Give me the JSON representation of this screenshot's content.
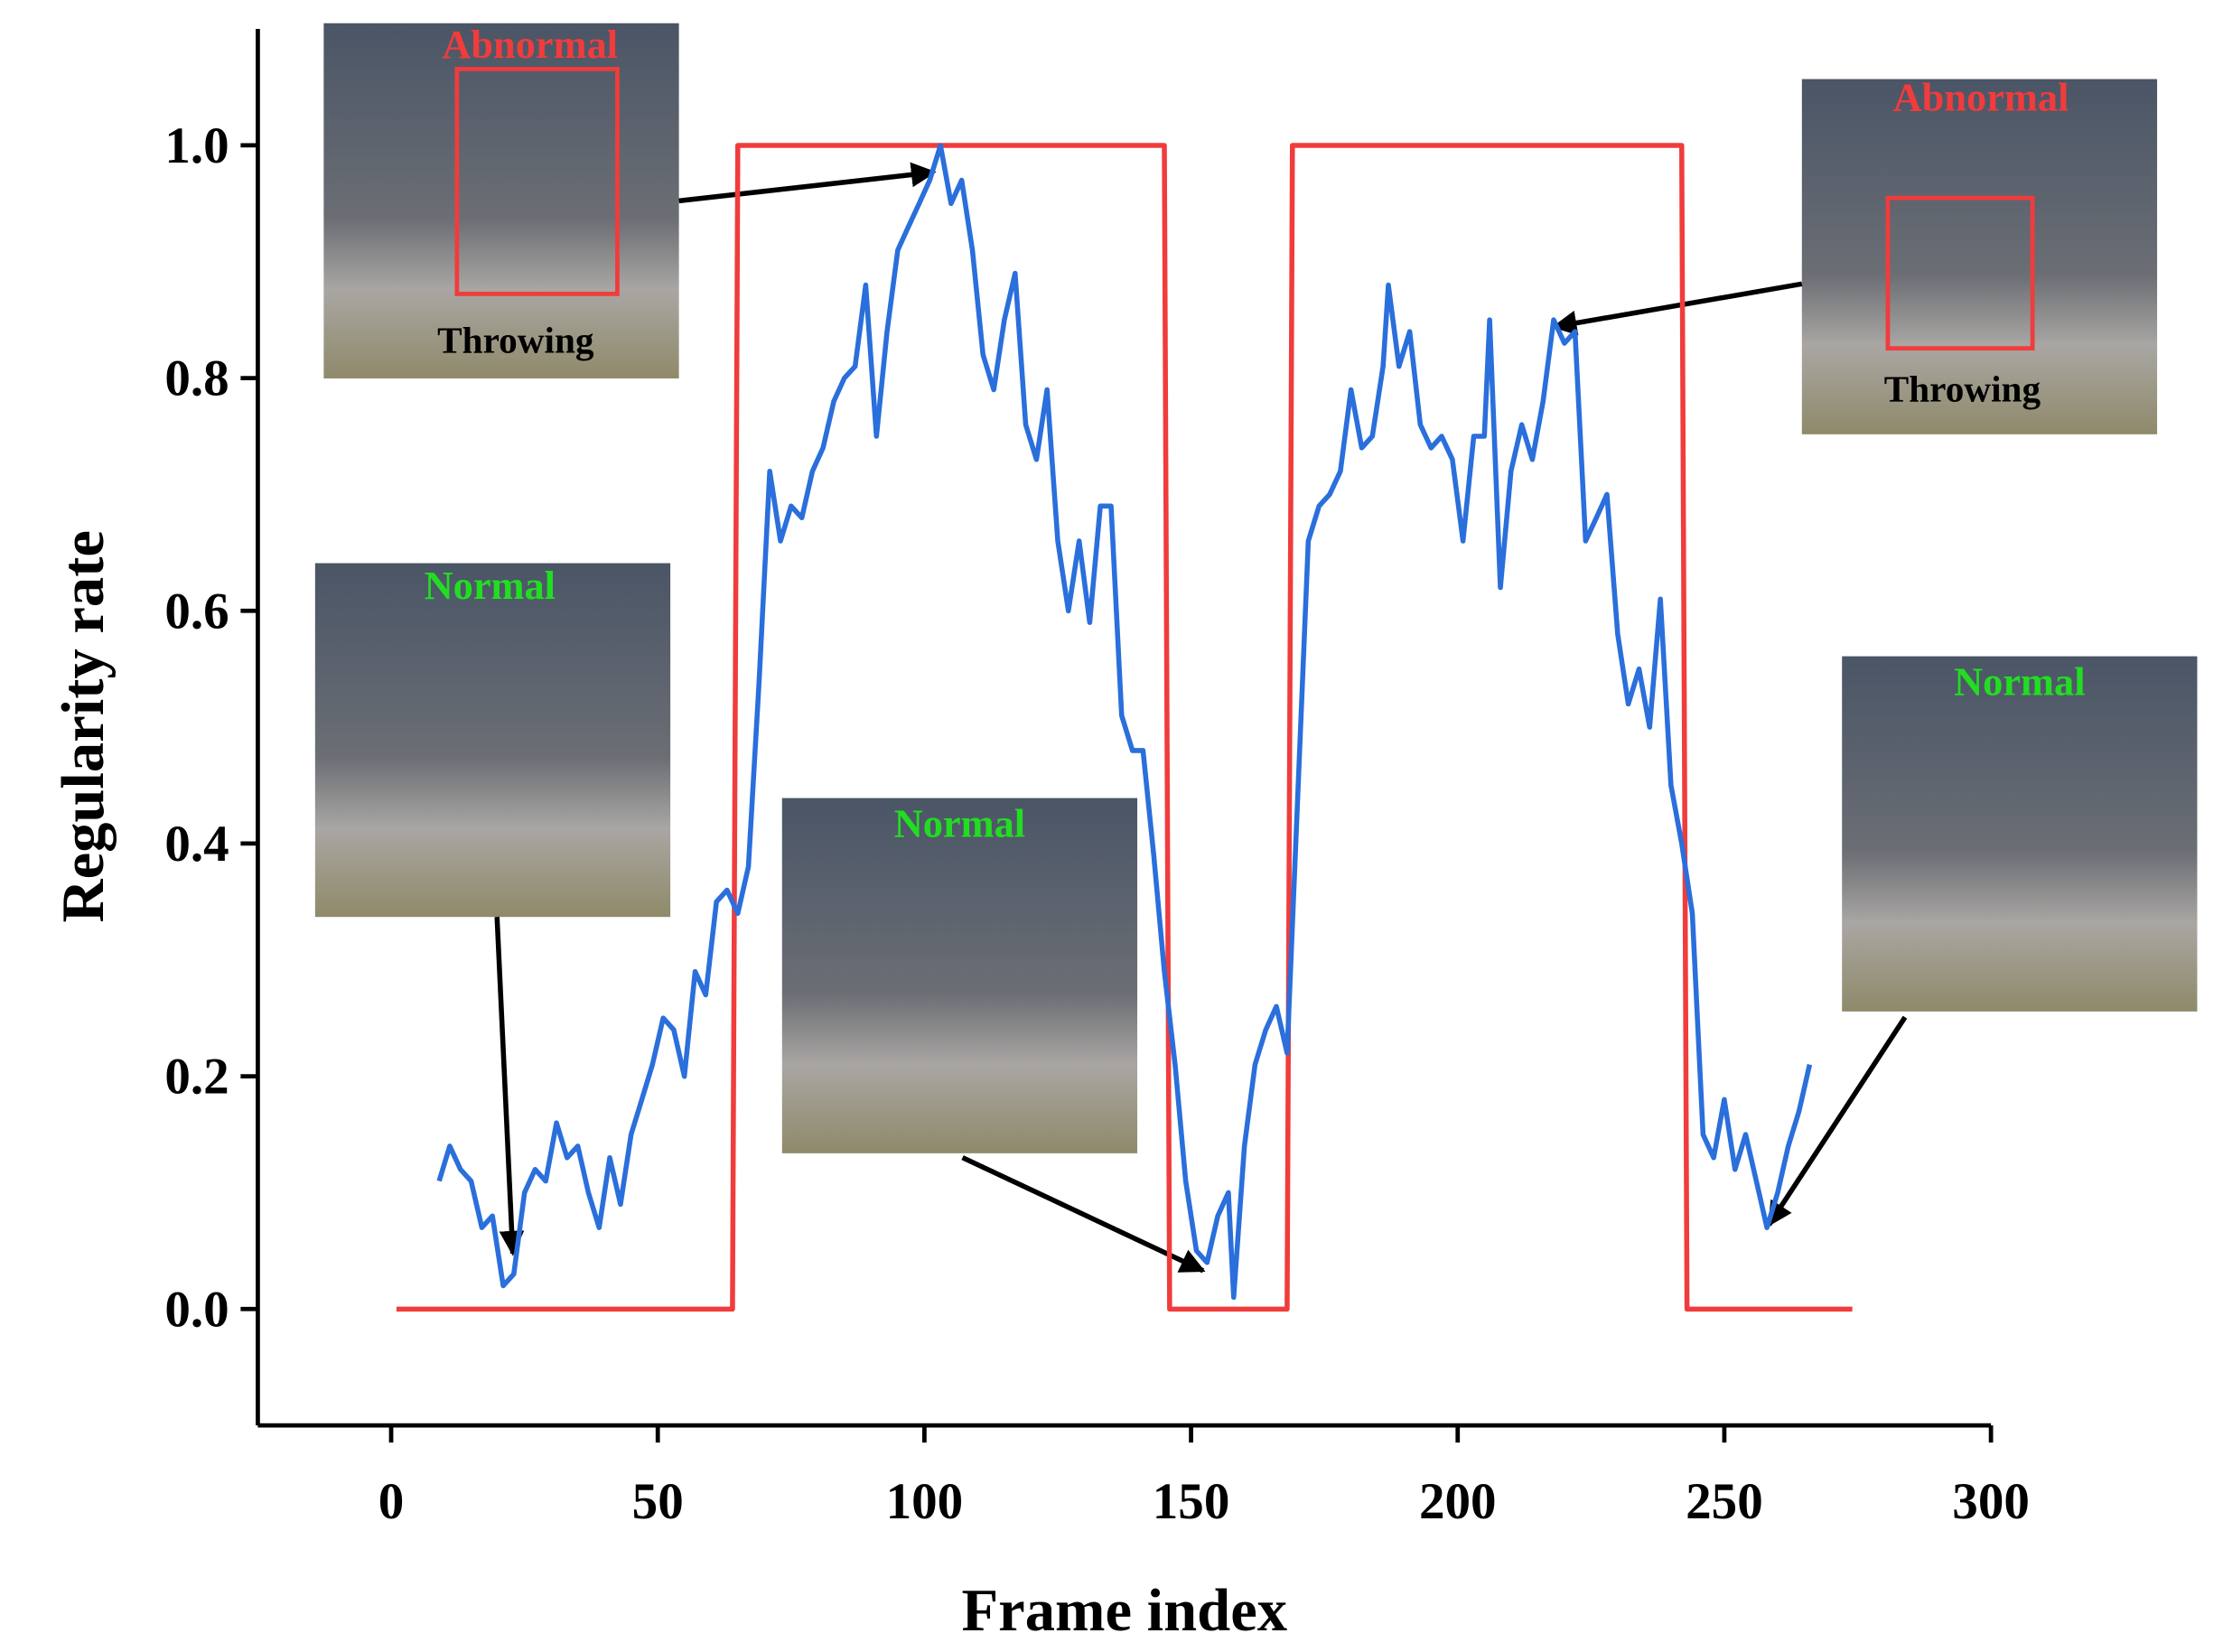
{
  "chart_data": {
    "type": "line",
    "xlabel": "Frame index",
    "ylabel": "Regularity rate",
    "xlim": [
      -25,
      300
    ],
    "ylim": [
      -0.1,
      1.1
    ],
    "xticks": [
      0,
      50,
      100,
      150,
      200,
      250,
      300
    ],
    "yticks": [
      {
        "value": 0,
        "label": "0.0"
      },
      0.2,
      0.4,
      0.6,
      0.8,
      {
        "value": 1,
        "label": "1.0"
      }
    ],
    "series": [
      {
        "color": "#f03c3c",
        "x": [
          1,
          64,
          65,
          145,
          146,
          168,
          169,
          242,
          243,
          274
        ],
        "values": [
          0,
          0,
          1,
          1,
          0,
          0,
          1,
          1,
          0,
          0
        ]
      },
      {
        "color": "#2a6fdb",
        "x": [
          9,
          11,
          13,
          15,
          17,
          19,
          21,
          23,
          25,
          27,
          29,
          31,
          33,
          35,
          37,
          39,
          41,
          43,
          45,
          47,
          49,
          51,
          53,
          55,
          57,
          59,
          61,
          63,
          65,
          67,
          69,
          71,
          73,
          75,
          77,
          79,
          81,
          83,
          85,
          87,
          89,
          91,
          93,
          95,
          97,
          99,
          101,
          103,
          105,
          107,
          109,
          111,
          113,
          115,
          117,
          119,
          121,
          123,
          125,
          127,
          129,
          131,
          133,
          135,
          137,
          139,
          141,
          143,
          145,
          147,
          149,
          151,
          153,
          155,
          157,
          158,
          160,
          162,
          164,
          166,
          168,
          170,
          172,
          174,
          176,
          178,
          180,
          182,
          184,
          186,
          187,
          189,
          191,
          193,
          195,
          197,
          199,
          201,
          203,
          205,
          206,
          208,
          210,
          212,
          214,
          216,
          218,
          220,
          222,
          224,
          226,
          228,
          230,
          232,
          234,
          236,
          238,
          240,
          242,
          244,
          246,
          248,
          250,
          252,
          254,
          256,
          258,
          260,
          262,
          264,
          266
        ],
        "values": [
          0.11,
          0.14,
          0.12,
          0.11,
          0.07,
          0.08,
          0.02,
          0.03,
          0.1,
          0.12,
          0.11,
          0.16,
          0.13,
          0.14,
          0.1,
          0.07,
          0.13,
          0.09,
          0.15,
          0.18,
          0.21,
          0.25,
          0.24,
          0.2,
          0.29,
          0.27,
          0.35,
          0.36,
          0.34,
          0.38,
          0.54,
          0.72,
          0.66,
          0.69,
          0.68,
          0.72,
          0.74,
          0.78,
          0.8,
          0.81,
          0.88,
          0.75,
          0.84,
          0.91,
          0.93,
          0.95,
          0.97,
          1.0,
          0.95,
          0.97,
          0.91,
          0.82,
          0.79,
          0.85,
          0.89,
          0.76,
          0.73,
          0.79,
          0.66,
          0.6,
          0.66,
          0.59,
          0.69,
          0.69,
          0.51,
          0.48,
          0.48,
          0.39,
          0.29,
          0.21,
          0.11,
          0.05,
          0.04,
          0.08,
          0.1,
          0.01,
          0.14,
          0.21,
          0.24,
          0.26,
          0.22,
          0.44,
          0.66,
          0.69,
          0.7,
          0.72,
          0.79,
          0.74,
          0.75,
          0.81,
          0.88,
          0.81,
          0.84,
          0.76,
          0.74,
          0.75,
          0.73,
          0.66,
          0.75,
          0.75,
          0.85,
          0.62,
          0.72,
          0.76,
          0.73,
          0.78,
          0.85,
          0.83,
          0.84,
          0.66,
          0.68,
          0.7,
          0.58,
          0.52,
          0.55,
          0.5,
          0.61,
          0.45,
          0.4,
          0.34,
          0.15,
          0.13,
          0.18,
          0.12,
          0.15,
          0.11,
          0.07,
          0.1,
          0.14,
          0.17,
          0.21
        ]
      }
    ],
    "annotations": [
      {
        "text": "Abnormal",
        "color": "#f03c3c"
      },
      {
        "text": "Throwing",
        "color": "#000000"
      },
      {
        "text": "Abnormal",
        "color": "#f03c3c"
      },
      {
        "text": "Throwing",
        "color": "#000000"
      },
      {
        "text": "Normal",
        "color": "#22dd22"
      },
      {
        "text": "Normal",
        "color": "#22dd22"
      },
      {
        "text": "Normal",
        "color": "#22dd22"
      }
    ]
  }
}
